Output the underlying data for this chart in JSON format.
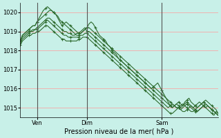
{
  "background_color": "#c8f0e8",
  "grid_color": "#ff9999",
  "line_color": "#2d6a2d",
  "xlabel": "Pression niveau de la mer( hPa )",
  "ylim": [
    1014.5,
    1020.5
  ],
  "yticks": [
    1015,
    1016,
    1017,
    1018,
    1019,
    1020
  ],
  "ven_x": 8,
  "dim_x": 32,
  "sam_x": 68,
  "total_points": 96,
  "series": [
    [
      1018.5,
      1018.8,
      1018.9,
      1019.0,
      1019.1,
      1019.2,
      1019.3,
      1019.3,
      1019.5,
      1019.6,
      1019.7,
      1019.8,
      1019.9,
      1020.0,
      1020.1,
      1020.1,
      1020.0,
      1019.9,
      1019.8,
      1019.6,
      1019.5,
      1019.4,
      1019.3,
      1019.2,
      1019.1,
      1019.0,
      1018.9,
      1018.8,
      1018.8,
      1018.9,
      1019.0,
      1019.1,
      1019.2,
      1019.2,
      1019.1,
      1019.0,
      1018.9,
      1018.8,
      1018.7,
      1018.6,
      1018.5,
      1018.4,
      1018.3,
      1018.2,
      1018.1,
      1018.0,
      1017.9,
      1017.8,
      1017.7,
      1017.6,
      1017.5,
      1017.4,
      1017.3,
      1017.2,
      1017.1,
      1017.0,
      1016.9,
      1016.8,
      1016.7,
      1016.6,
      1016.5,
      1016.4,
      1016.3,
      1016.2,
      1016.1,
      1016.0,
      1015.9,
      1015.8,
      1015.7,
      1015.6,
      1015.5,
      1015.4,
      1015.3,
      1015.2,
      1015.1,
      1015.0,
      1015.0,
      1015.1,
      1015.2,
      1015.1,
      1015.0,
      1014.9,
      1014.8,
      1014.8,
      1014.9,
      1015.0,
      1015.1,
      1015.2,
      1015.3,
      1015.2,
      1015.1,
      1015.0,
      1014.9,
      1014.8,
      1014.7,
      1014.6
    ],
    [
      1018.5,
      1018.8,
      1018.9,
      1019.0,
      1019.1,
      1019.2,
      1019.3,
      1019.3,
      1019.5,
      1019.7,
      1019.9,
      1020.1,
      1020.2,
      1020.3,
      1020.2,
      1020.1,
      1020.0,
      1019.9,
      1019.7,
      1019.5,
      1019.3,
      1019.4,
      1019.5,
      1019.4,
      1019.3,
      1019.2,
      1019.1,
      1019.0,
      1018.9,
      1018.9,
      1019.0,
      1019.1,
      1019.2,
      1019.4,
      1019.5,
      1019.4,
      1019.2,
      1019.0,
      1018.8,
      1018.7,
      1018.6,
      1018.5,
      1018.3,
      1018.2,
      1018.0,
      1017.9,
      1017.8,
      1017.6,
      1017.5,
      1017.4,
      1017.3,
      1017.2,
      1017.1,
      1017.0,
      1016.9,
      1016.8,
      1016.7,
      1016.6,
      1016.5,
      1016.4,
      1016.3,
      1016.2,
      1016.1,
      1016.0,
      1015.9,
      1015.8,
      1015.7,
      1015.6,
      1015.5,
      1015.4,
      1015.3,
      1015.2,
      1015.1,
      1015.0,
      1015.1,
      1015.2,
      1015.3,
      1015.2,
      1015.1,
      1015.3,
      1015.4,
      1015.5,
      1015.3,
      1015.2,
      1015.1,
      1015.0,
      1015.1,
      1015.2,
      1015.3,
      1015.4,
      1015.3,
      1015.2,
      1015.1,
      1015.0,
      1014.9,
      1014.7
    ],
    [
      1018.5,
      1018.7,
      1018.8,
      1018.9,
      1019.0,
      1019.0,
      1019.1,
      1019.1,
      1019.2,
      1019.3,
      1019.4,
      1019.5,
      1019.6,
      1019.7,
      1019.7,
      1019.6,
      1019.5,
      1019.4,
      1019.3,
      1019.2,
      1019.1,
      1019.0,
      1019.0,
      1018.9,
      1018.9,
      1018.8,
      1018.8,
      1018.9,
      1018.9,
      1019.0,
      1019.1,
      1019.2,
      1019.0,
      1019.0,
      1018.9,
      1018.8,
      1018.7,
      1018.6,
      1018.5,
      1018.4,
      1018.3,
      1018.2,
      1018.1,
      1018.0,
      1017.9,
      1017.8,
      1017.7,
      1017.6,
      1017.5,
      1017.4,
      1017.3,
      1017.2,
      1017.1,
      1017.0,
      1016.9,
      1016.8,
      1016.7,
      1016.6,
      1016.5,
      1016.4,
      1016.3,
      1016.2,
      1016.1,
      1016.0,
      1016.1,
      1016.2,
      1016.3,
      1016.1,
      1015.9,
      1015.7,
      1015.5,
      1015.3,
      1015.1,
      1015.0,
      1015.1,
      1015.2,
      1015.1,
      1015.0,
      1015.1,
      1015.2,
      1015.3,
      1015.2,
      1015.1,
      1015.0,
      1015.1,
      1015.2,
      1015.3,
      1015.2,
      1015.1,
      1015.0,
      1014.9,
      1014.8,
      1014.7,
      1014.6,
      1014.8,
      1014.7
    ],
    [
      1018.4,
      1018.6,
      1018.7,
      1018.8,
      1018.9,
      1019.0,
      1019.0,
      1019.1,
      1019.1,
      1019.2,
      1019.3,
      1019.4,
      1019.5,
      1019.6,
      1019.5,
      1019.4,
      1019.3,
      1019.2,
      1019.1,
      1019.0,
      1018.9,
      1018.8,
      1018.8,
      1018.7,
      1018.7,
      1018.7,
      1018.7,
      1018.7,
      1018.7,
      1018.8,
      1018.8,
      1018.9,
      1018.9,
      1018.8,
      1018.7,
      1018.6,
      1018.5,
      1018.4,
      1018.3,
      1018.2,
      1018.1,
      1018.0,
      1017.9,
      1017.8,
      1017.7,
      1017.6,
      1017.5,
      1017.4,
      1017.3,
      1017.2,
      1017.1,
      1017.0,
      1016.9,
      1016.8,
      1016.7,
      1016.6,
      1016.5,
      1016.4,
      1016.3,
      1016.2,
      1016.1,
      1016.0,
      1015.9,
      1015.8,
      1015.7,
      1015.6,
      1015.5,
      1015.4,
      1015.3,
      1015.2,
      1015.1,
      1015.0,
      1015.1,
      1015.2,
      1015.1,
      1015.0,
      1015.0,
      1014.9,
      1015.0,
      1015.1,
      1015.2,
      1015.1,
      1015.0,
      1014.9,
      1014.8,
      1014.8,
      1014.9,
      1015.0,
      1015.1,
      1015.0,
      1015.1,
      1015.0,
      1014.9,
      1014.8,
      1014.7,
      1014.6
    ],
    [
      1018.3,
      1018.5,
      1018.6,
      1018.7,
      1018.8,
      1018.8,
      1018.9,
      1018.9,
      1019.0,
      1019.0,
      1019.1,
      1019.2,
      1019.3,
      1019.3,
      1019.2,
      1019.1,
      1019.0,
      1018.9,
      1018.8,
      1018.7,
      1018.6,
      1018.6,
      1018.5,
      1018.5,
      1018.5,
      1018.5,
      1018.5,
      1018.5,
      1018.6,
      1018.6,
      1018.7,
      1018.7,
      1018.7,
      1018.6,
      1018.5,
      1018.4,
      1018.3,
      1018.2,
      1018.1,
      1018.0,
      1017.9,
      1017.8,
      1017.7,
      1017.6,
      1017.5,
      1017.4,
      1017.3,
      1017.2,
      1017.1,
      1017.0,
      1016.9,
      1016.8,
      1016.7,
      1016.6,
      1016.5,
      1016.4,
      1016.3,
      1016.2,
      1016.1,
      1016.0,
      1015.9,
      1015.8,
      1015.7,
      1015.6,
      1015.5,
      1015.4,
      1015.3,
      1015.2,
      1015.1,
      1015.0,
      1014.9,
      1014.8,
      1014.7,
      1014.7,
      1014.8,
      1014.9,
      1015.0,
      1014.9,
      1014.8,
      1014.8,
      1014.9,
      1015.0,
      1015.1,
      1015.0,
      1014.9,
      1014.8,
      1014.9,
      1015.0,
      1015.1,
      1015.2,
      1015.1,
      1015.0,
      1014.9,
      1014.8,
      1014.7,
      1014.6
    ]
  ],
  "xtick_positions": [
    8,
    32,
    68
  ],
  "xtick_labels": [
    "Ven",
    "Dim",
    "Sam"
  ],
  "vline_color": "#555555",
  "marker": "+"
}
